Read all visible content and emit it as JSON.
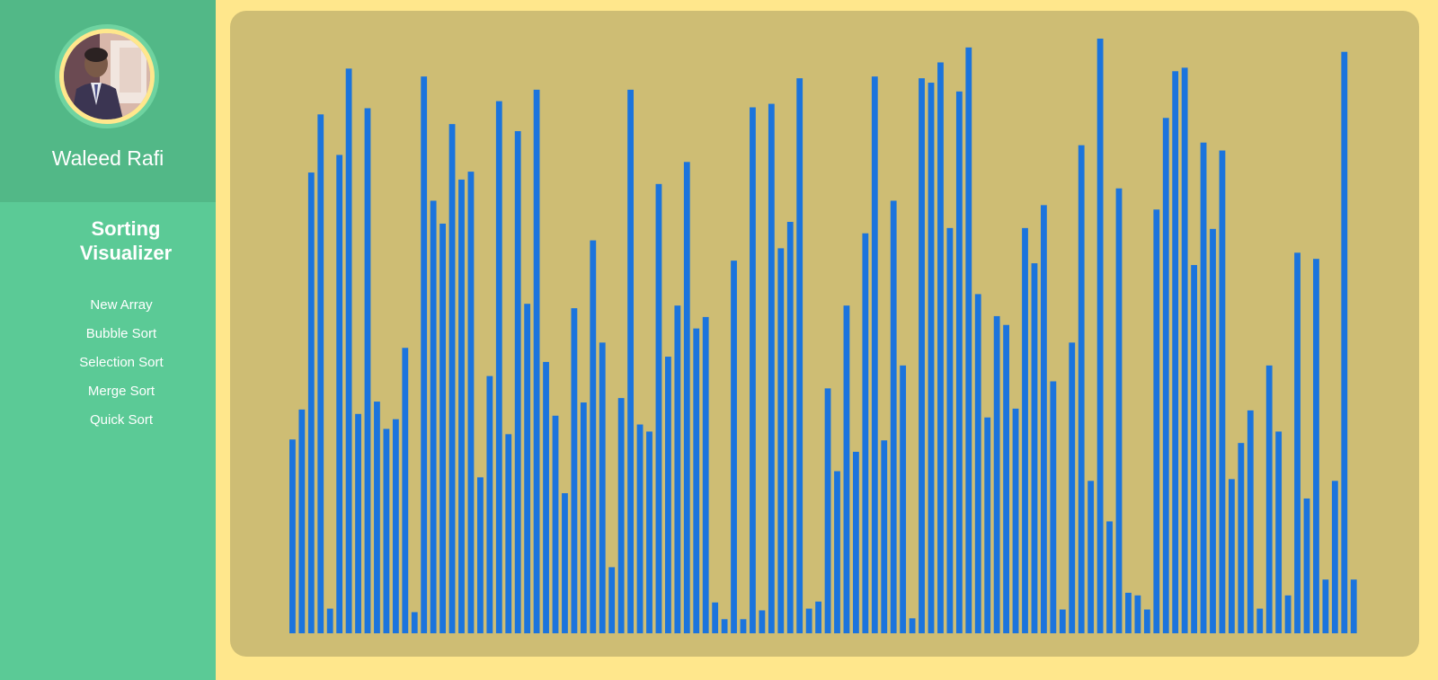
{
  "profile": {
    "name": "Waleed Rafi"
  },
  "app": {
    "title": "Sorting Visualizer"
  },
  "menu": {
    "items": [
      {
        "label": "New Array"
      },
      {
        "label": "Bubble Sort"
      },
      {
        "label": "Selection Sort"
      },
      {
        "label": "Merge Sort"
      },
      {
        "label": "Quick Sort"
      }
    ]
  },
  "colors": {
    "background": "#ffe78c",
    "sidebar": "#5bca96",
    "profile_header": "#52b887",
    "panel": "#cebd74",
    "bar": "#1b74dd"
  },
  "chart_data": {
    "type": "bar",
    "value_max": 675,
    "values": [
      220,
      254,
      523,
      589,
      28,
      543,
      641,
      249,
      596,
      263,
      232,
      243,
      324,
      24,
      632,
      491,
      465,
      578,
      515,
      524,
      177,
      292,
      604,
      226,
      570,
      374,
      617,
      308,
      247,
      159,
      369,
      262,
      446,
      330,
      75,
      267,
      617,
      237,
      229,
      510,
      314,
      372,
      535,
      346,
      359,
      35,
      16,
      423,
      16,
      597,
      26,
      601,
      437,
      467,
      630,
      28,
      36,
      278,
      184,
      372,
      206,
      454,
      632,
      219,
      491,
      304,
      17,
      630,
      625,
      648,
      460,
      615,
      665,
      385,
      245,
      360,
      350,
      255,
      460,
      420,
      486,
      286,
      27,
      330,
      554,
      173,
      675,
      127,
      505,
      46,
      43,
      27,
      481,
      585,
      638,
      642,
      418,
      557,
      459,
      548,
      175,
      216,
      253,
      28,
      304,
      229,
      43,
      432,
      153,
      425,
      61,
      173,
      660,
      61
    ]
  }
}
